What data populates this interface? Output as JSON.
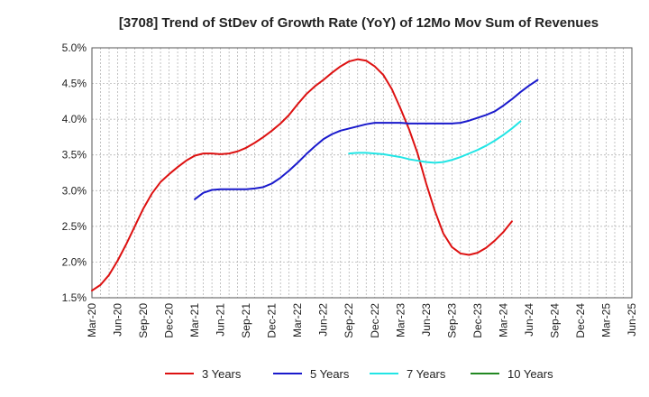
{
  "chart_data": {
    "type": "line",
    "title": "[3708]  Trend of StDev of Growth Rate (YoY) of 12Mo Mov Sum of Revenues",
    "xlabel": "",
    "ylabel": "",
    "ylim": [
      1.5,
      5.0
    ],
    "y_ticks": [
      "1.5%",
      "2.0%",
      "2.5%",
      "3.0%",
      "3.5%",
      "4.0%",
      "4.5%",
      "5.0%"
    ],
    "x_ticks": [
      "Mar-20",
      "Jun-20",
      "Sep-20",
      "Dec-20",
      "Mar-21",
      "Jun-21",
      "Sep-21",
      "Dec-21",
      "Mar-22",
      "Jun-22",
      "Sep-22",
      "Dec-22",
      "Mar-23",
      "Jun-23",
      "Sep-23",
      "Dec-23",
      "Mar-24",
      "Jun-24",
      "Sep-24",
      "Dec-24",
      "Mar-25",
      "Jun-25"
    ],
    "grid": true,
    "legend_position": "bottom",
    "series": [
      {
        "name": "3 Years",
        "color": "#dd1111",
        "start_index": 0,
        "values": [
          1.6,
          1.68,
          1.82,
          2.02,
          2.25,
          2.5,
          2.75,
          2.96,
          3.12,
          3.23,
          3.33,
          3.42,
          3.49,
          3.52,
          3.52,
          3.51,
          3.52,
          3.55,
          3.6,
          3.67,
          3.75,
          3.84,
          3.94,
          4.06,
          4.21,
          4.35,
          4.46,
          4.55,
          4.65,
          4.74,
          4.81,
          4.84,
          4.82,
          4.74,
          4.62,
          4.42,
          4.15,
          3.86,
          3.52,
          3.1,
          2.72,
          2.4,
          2.21,
          2.12,
          2.1,
          2.13,
          2.2,
          2.3,
          2.42,
          2.57
        ]
      },
      {
        "name": "5 Years",
        "color": "#1a1acc",
        "start_index": 12,
        "values": [
          2.88,
          2.97,
          3.01,
          3.02,
          3.02,
          3.02,
          3.02,
          3.03,
          3.05,
          3.1,
          3.18,
          3.28,
          3.39,
          3.51,
          3.62,
          3.72,
          3.79,
          3.84,
          3.87,
          3.9,
          3.93,
          3.95,
          3.95,
          3.95,
          3.95,
          3.94,
          3.94,
          3.94,
          3.94,
          3.94,
          3.94,
          3.95,
          3.98,
          4.02,
          4.06,
          4.11,
          4.19,
          4.28,
          4.38,
          4.47,
          4.55
        ]
      },
      {
        "name": "7 Years",
        "color": "#22e5e5",
        "start_index": 30,
        "values": [
          3.52,
          3.53,
          3.53,
          3.52,
          3.51,
          3.49,
          3.47,
          3.44,
          3.42,
          3.4,
          3.39,
          3.4,
          3.43,
          3.47,
          3.52,
          3.57,
          3.63,
          3.7,
          3.78,
          3.87,
          3.97
        ]
      },
      {
        "name": "10 Years",
        "color": "#228822",
        "start_index": 0,
        "values": []
      }
    ]
  }
}
